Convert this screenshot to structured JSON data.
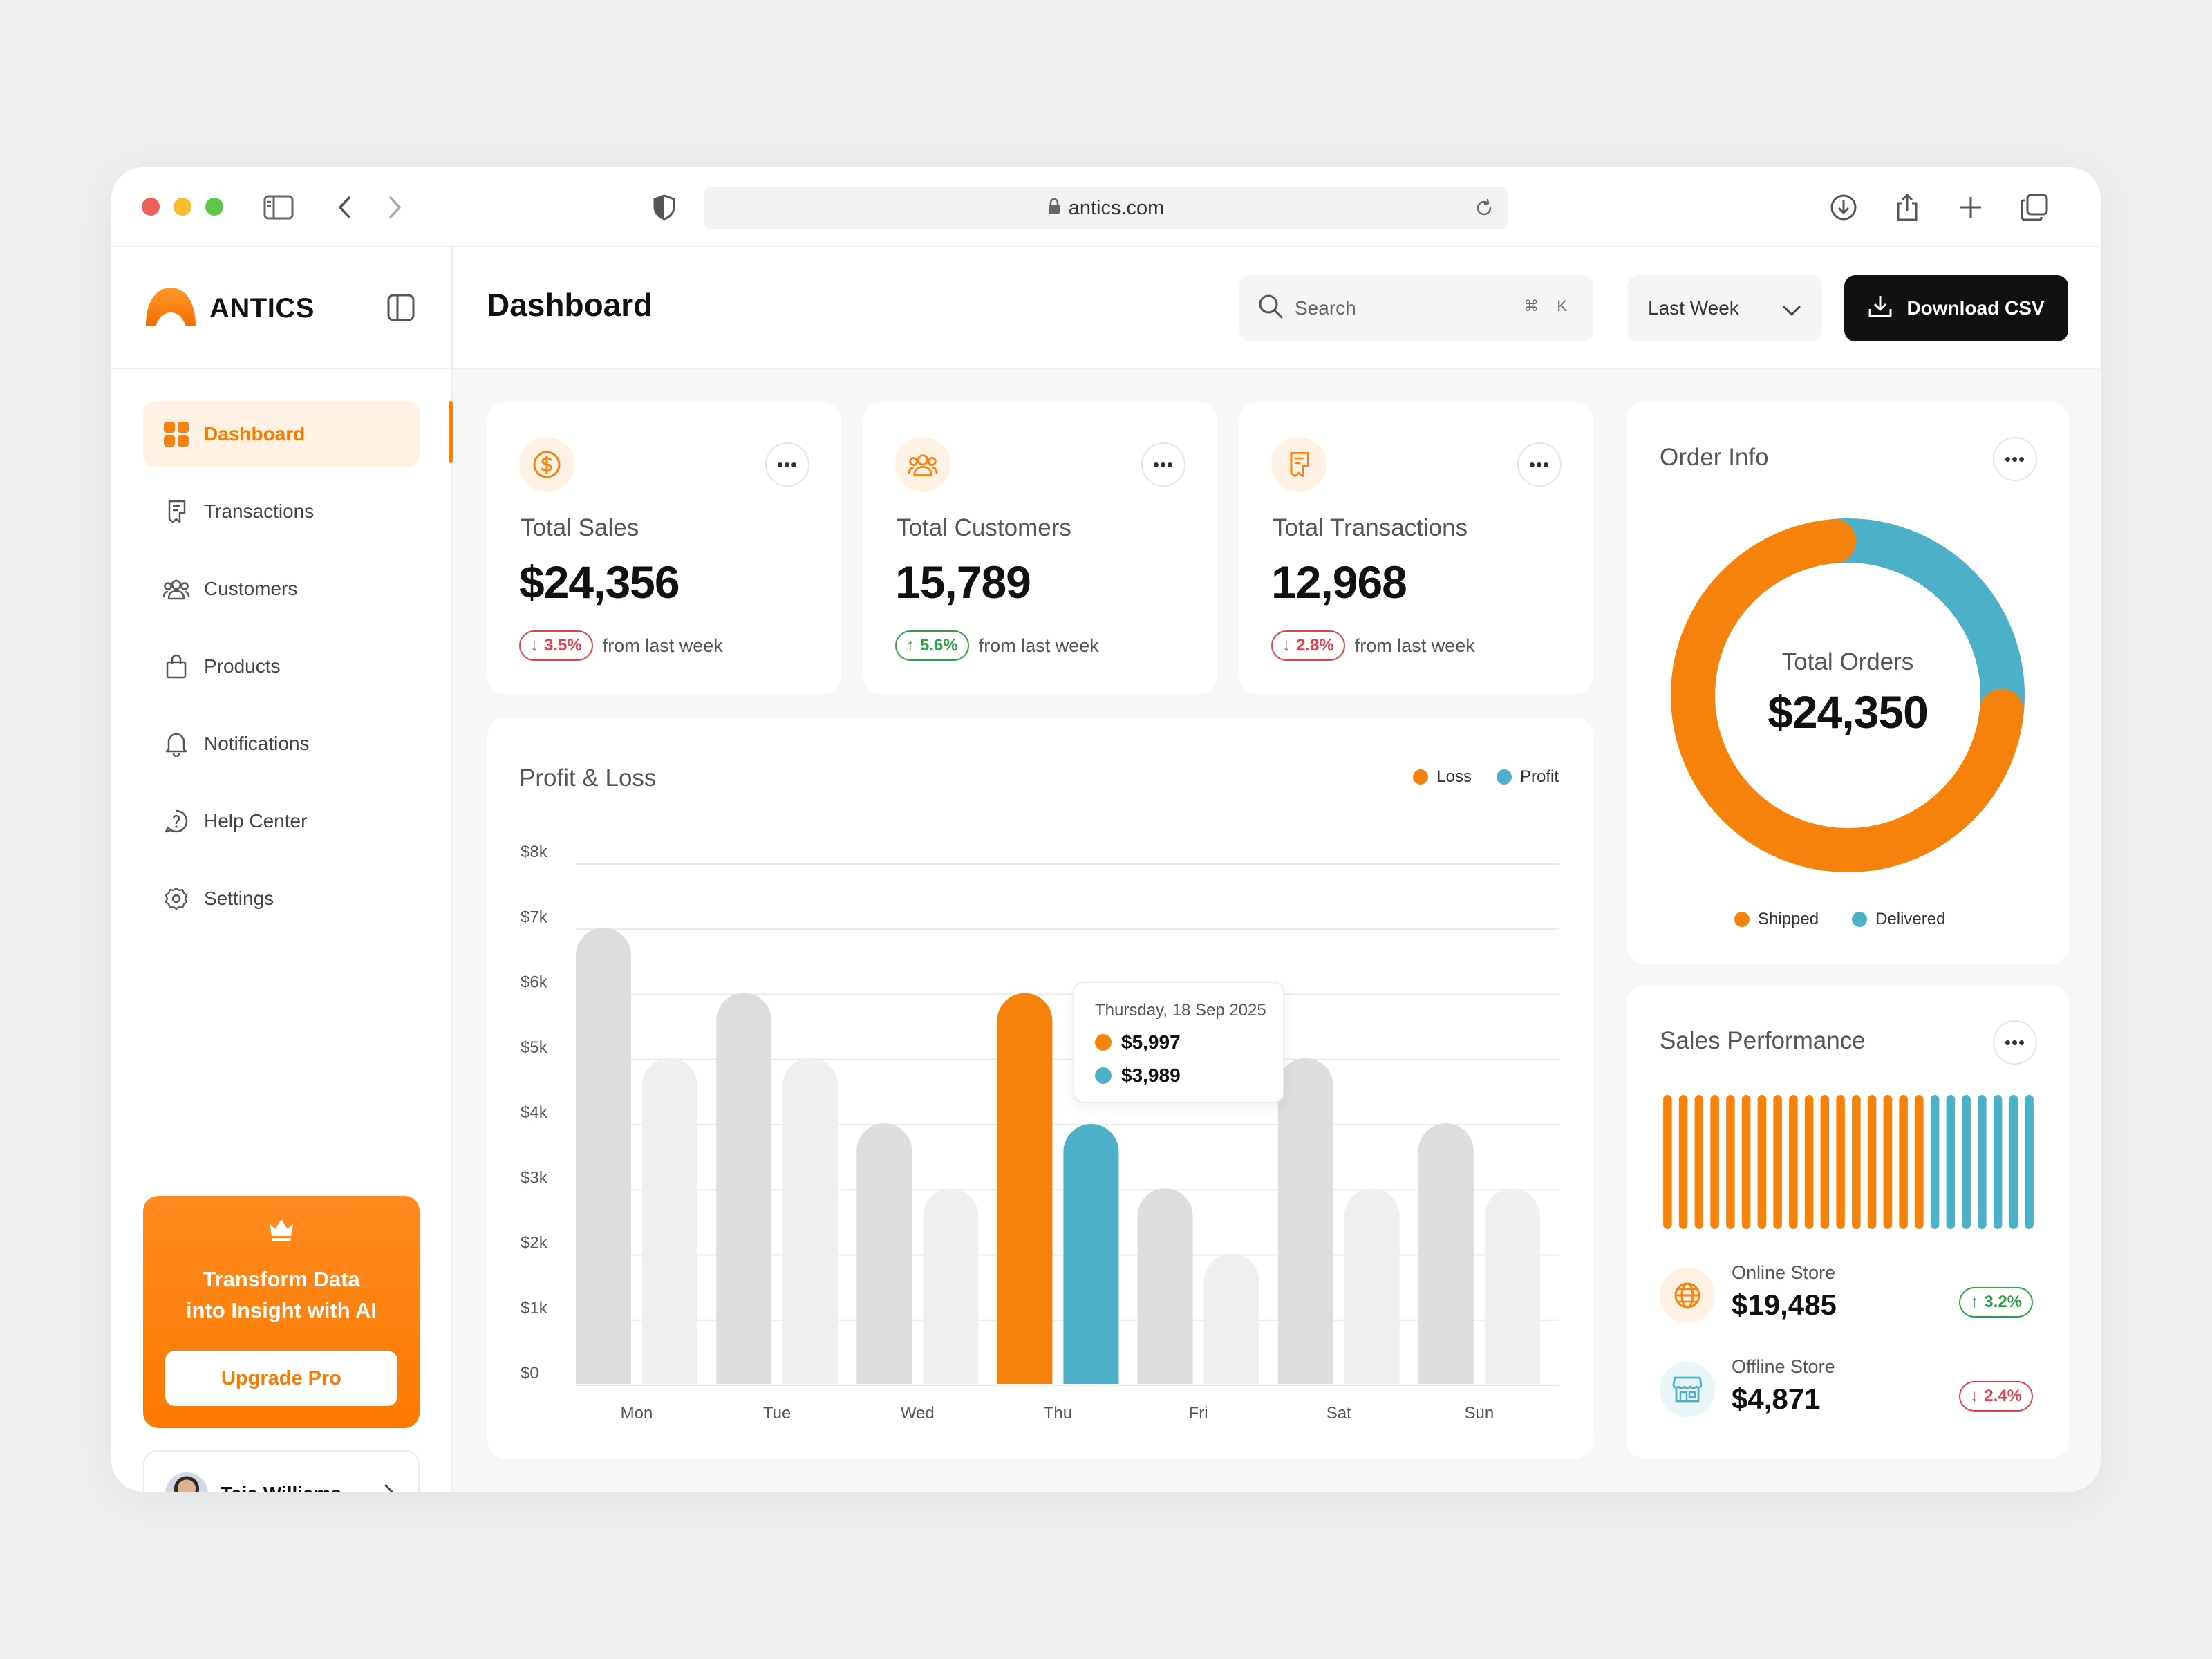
{
  "browser": {
    "url": "antics.com"
  },
  "brand": {
    "name": "ANTICS",
    "accent": "#F5820B",
    "secondary": "#4DB0C9"
  },
  "sidebar": {
    "items": [
      {
        "label": "Dashboard",
        "icon": "grid-icon",
        "active": true
      },
      {
        "label": "Transactions",
        "icon": "receipt-icon"
      },
      {
        "label": "Customers",
        "icon": "users-icon"
      },
      {
        "label": "Products",
        "icon": "bag-icon"
      },
      {
        "label": "Notifications",
        "icon": "bell-icon"
      },
      {
        "label": "Help Center",
        "icon": "help-icon"
      },
      {
        "label": "Settings",
        "icon": "gear-icon"
      }
    ],
    "promo": {
      "title_line1": "Transform Data",
      "title_line2": "into Insight with AI",
      "button": "Upgrade Pro"
    },
    "user": {
      "name": "Teja Williams"
    }
  },
  "header": {
    "title": "Dashboard",
    "search_placeholder": "Search",
    "search_shortcut": "⌘ K",
    "period": "Last Week",
    "download_label": "Download CSV"
  },
  "stats": [
    {
      "label": "Total Sales",
      "value": "$24,356",
      "change": "3.5%",
      "direction": "down",
      "note": "from last week",
      "icon": "dollar-icon"
    },
    {
      "label": "Total Customers",
      "value": "15,789",
      "change": "5.6%",
      "direction": "up",
      "note": "from last week",
      "icon": "users-icon"
    },
    {
      "label": "Total Transactions",
      "value": "12,968",
      "change": "2.8%",
      "direction": "down",
      "note": "from last week",
      "icon": "receipt-icon"
    }
  ],
  "profit_loss": {
    "title": "Profit & Loss",
    "legend": {
      "loss": "Loss",
      "profit": "Profit"
    },
    "tooltip": {
      "date": "Thursday, 18 Sep 2025",
      "loss": "$5,997",
      "profit": "$3,989"
    }
  },
  "order_info": {
    "title": "Order Info",
    "center_label": "Total Orders",
    "center_value": "$24,350",
    "legend": {
      "shipped": "Shipped",
      "delivered": "Delivered"
    }
  },
  "sales_performance": {
    "title": "Sales Performance",
    "stores": [
      {
        "name": "Online Store",
        "value": "$19,485",
        "change": "3.2%",
        "direction": "up",
        "icon": "globe-icon"
      },
      {
        "name": "Offline Store",
        "value": "$4,871",
        "change": "2.4%",
        "direction": "down",
        "icon": "store-icon"
      }
    ],
    "bars_shipped": 17,
    "bars_delivered": 7
  },
  "chart_data": [
    {
      "type": "bar",
      "title": "Profit & Loss",
      "categories": [
        "Mon",
        "Tue",
        "Wed",
        "Thu",
        "Fri",
        "Sat",
        "Sun"
      ],
      "ylim": [
        0,
        8000
      ],
      "yticks": [
        "$0",
        "$1k",
        "$2k",
        "$3k",
        "$4k",
        "$5k",
        "$6k",
        "$7k",
        "$8k"
      ],
      "series": [
        {
          "name": "Loss",
          "values": [
            7000,
            6000,
            4000,
            5997,
            3000,
            5000,
            4000
          ]
        },
        {
          "name": "Profit",
          "values": [
            5000,
            5000,
            3000,
            3989,
            2000,
            3000,
            3000
          ]
        }
      ],
      "highlight": "Thu",
      "legend": "top-right",
      "grid": true
    },
    {
      "type": "pie",
      "title": "Order Info",
      "categories": [
        "Shipped",
        "Delivered"
      ],
      "values": [
        0.72,
        0.28
      ],
      "colors": [
        "#F5820B",
        "#4DB0C9"
      ],
      "legend": "bottom"
    }
  ]
}
